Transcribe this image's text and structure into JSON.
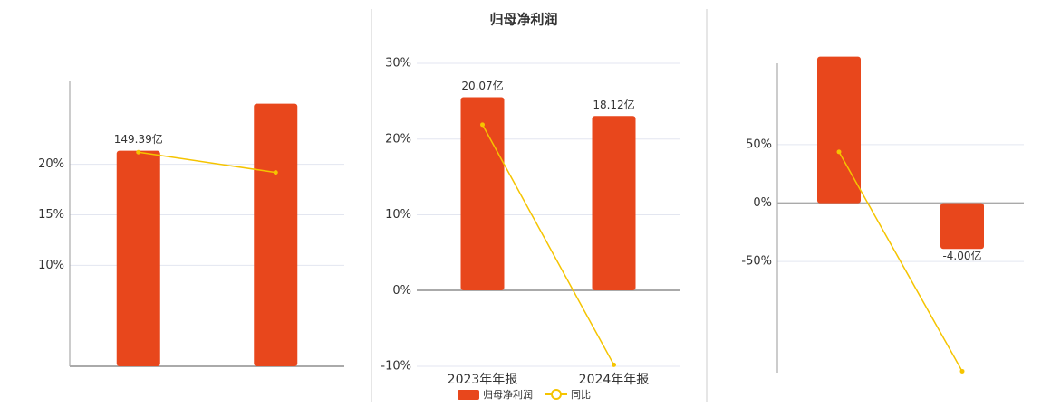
{
  "chart_data": [
    {
      "type": "combo",
      "categories": [
        null,
        null
      ],
      "ylim": [
        0,
        30
      ],
      "yticks": [
        {
          "value": 10,
          "label": "10%"
        },
        {
          "value": 15,
          "label": "15%"
        },
        {
          "value": 20,
          "label": "20%"
        }
      ],
      "y2lim": [
        0,
        210
      ],
      "grid": true,
      "legend": false,
      "series": [
        {
          "type": "bar",
          "axis": "y2",
          "color": "#e8471c",
          "values": [
            149.39,
            182
          ],
          "value_labels": [
            "149.39亿",
            null
          ]
        },
        {
          "type": "line",
          "color": "#f5c400",
          "values": [
            21.2,
            19.2
          ]
        }
      ]
    },
    {
      "type": "combo",
      "title": "归母净利润",
      "categories": [
        "2023年年报",
        "2024年年报"
      ],
      "ylim": [
        -10,
        30
      ],
      "yticks": [
        {
          "value": -10,
          "label": "-10%"
        },
        {
          "value": 0,
          "label": "0%"
        },
        {
          "value": 10,
          "label": "10%"
        },
        {
          "value": 20,
          "label": "20%"
        },
        {
          "value": 30,
          "label": "30%"
        }
      ],
      "y2lim": [
        -7.9,
        23.6
      ],
      "grid": true,
      "legend": true,
      "series": [
        {
          "type": "bar",
          "axis": "y2",
          "name": "归母净利润",
          "color": "#e8471c",
          "values": [
            20.07,
            18.12
          ],
          "value_labels": [
            "20.07亿",
            "18.12亿"
          ]
        },
        {
          "type": "line",
          "name": "同比",
          "color": "#f5c400",
          "values": [
            21.9,
            -9.8
          ]
        }
      ]
    },
    {
      "type": "combo",
      "categories": [
        null,
        null
      ],
      "ylim": [
        -145,
        135
      ],
      "yticks": [
        {
          "value": -50,
          "label": "-50%"
        },
        {
          "value": 0,
          "label": "0%"
        },
        {
          "value": 50,
          "label": "50%"
        }
      ],
      "y2lim": [
        -14.8,
        13.8
      ],
      "grid": true,
      "legend": false,
      "series": [
        {
          "type": "bar",
          "axis": "y2",
          "color": "#e8471c",
          "values": [
            12.8,
            -4.0
          ],
          "value_labels": [
            null,
            "-4.00亿"
          ]
        },
        {
          "type": "line",
          "color": "#f5c400",
          "values": [
            43.8,
            -143.8
          ]
        }
      ]
    }
  ]
}
